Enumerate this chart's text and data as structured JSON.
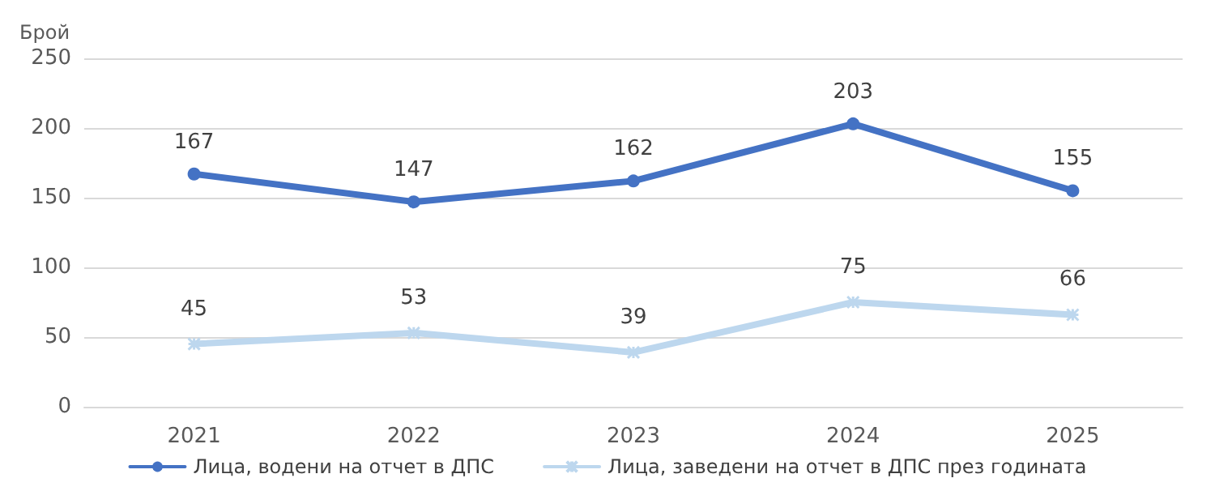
{
  "chart_data": {
    "type": "line",
    "ylabel": "Брой",
    "categories": [
      "2021",
      "2022",
      "2023",
      "2024",
      "2025"
    ],
    "series": [
      {
        "name": "Лица, водени на отчет в ДПС",
        "color": "#4472c4",
        "marker": "circle",
        "values": [
          167,
          147,
          162,
          203,
          155
        ]
      },
      {
        "name": "Лица, заведени на отчет в ДПС през годината",
        "color": "#bdd7ee",
        "marker": "cross",
        "values": [
          45,
          53,
          39,
          75,
          66
        ]
      }
    ],
    "ylim": [
      0,
      250
    ],
    "yticks": [
      0,
      50,
      100,
      150,
      200,
      250
    ],
    "grid": "y",
    "legend": "bottom",
    "data_labels": true
  }
}
